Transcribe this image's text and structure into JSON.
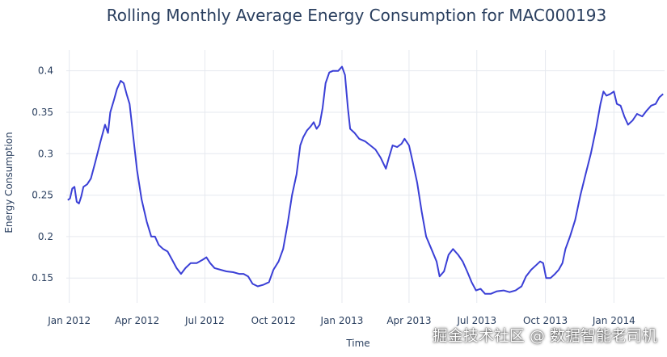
{
  "chart_data": {
    "type": "line",
    "title": "Rolling Monthly Average Energy Consumption for MAC000193",
    "xlabel": "Time",
    "ylabel": "Energy Consumption",
    "xlim": [
      "2011-12-28",
      "2014-03-10"
    ],
    "ylim": [
      0.12,
      0.425
    ],
    "grid": true,
    "x_ticks": [
      {
        "date": "2012-01-01",
        "label": "Jan 2012"
      },
      {
        "date": "2012-04-01",
        "label": "Apr 2012"
      },
      {
        "date": "2012-07-01",
        "label": "Jul 2012"
      },
      {
        "date": "2012-10-01",
        "label": "Oct 2012"
      },
      {
        "date": "2013-01-01",
        "label": "Jan 2013"
      },
      {
        "date": "2013-04-01",
        "label": "Apr 2013"
      },
      {
        "date": "2013-07-01",
        "label": "Jul 2013"
      },
      {
        "date": "2013-10-01",
        "label": "Oct 2013"
      },
      {
        "date": "2014-01-01",
        "label": "Jan 2014"
      }
    ],
    "y_ticks": [
      {
        "value": 0.15,
        "label": "0.15"
      },
      {
        "value": 0.2,
        "label": "0.2"
      },
      {
        "value": 0.25,
        "label": "0.25"
      },
      {
        "value": 0.3,
        "label": "0.3"
      },
      {
        "value": 0.35,
        "label": "0.35"
      },
      {
        "value": 0.4,
        "label": "0.4"
      }
    ],
    "series": [
      {
        "color": "#3a3fd6",
        "points": [
          [
            "2011-12-30",
            0.244
          ],
          [
            "2012-01-02",
            0.246
          ],
          [
            "2012-01-05",
            0.258
          ],
          [
            "2012-01-08",
            0.26
          ],
          [
            "2012-01-11",
            0.242
          ],
          [
            "2012-01-14",
            0.24
          ],
          [
            "2012-01-17",
            0.248
          ],
          [
            "2012-01-20",
            0.26
          ],
          [
            "2012-01-25",
            0.263
          ],
          [
            "2012-01-30",
            0.27
          ],
          [
            "2012-02-05",
            0.29
          ],
          [
            "2012-02-12",
            0.315
          ],
          [
            "2012-02-18",
            0.335
          ],
          [
            "2012-02-22",
            0.325
          ],
          [
            "2012-02-25",
            0.35
          ],
          [
            "2012-03-01",
            0.365
          ],
          [
            "2012-03-05",
            0.378
          ],
          [
            "2012-03-10",
            0.388
          ],
          [
            "2012-03-14",
            0.385
          ],
          [
            "2012-03-18",
            0.372
          ],
          [
            "2012-03-22",
            0.36
          ],
          [
            "2012-03-27",
            0.32
          ],
          [
            "2012-04-01",
            0.28
          ],
          [
            "2012-04-07",
            0.245
          ],
          [
            "2012-04-14",
            0.218
          ],
          [
            "2012-04-20",
            0.2
          ],
          [
            "2012-04-25",
            0.2
          ],
          [
            "2012-04-30",
            0.19
          ],
          [
            "2012-05-06",
            0.185
          ],
          [
            "2012-05-12",
            0.182
          ],
          [
            "2012-05-18",
            0.172
          ],
          [
            "2012-05-24",
            0.162
          ],
          [
            "2012-05-30",
            0.155
          ],
          [
            "2012-06-05",
            0.162
          ],
          [
            "2012-06-12",
            0.168
          ],
          [
            "2012-06-20",
            0.168
          ],
          [
            "2012-06-28",
            0.172
          ],
          [
            "2012-07-03",
            0.175
          ],
          [
            "2012-07-08",
            0.168
          ],
          [
            "2012-07-14",
            0.162
          ],
          [
            "2012-07-22",
            0.16
          ],
          [
            "2012-07-30",
            0.158
          ],
          [
            "2012-08-08",
            0.157
          ],
          [
            "2012-08-16",
            0.155
          ],
          [
            "2012-08-22",
            0.155
          ],
          [
            "2012-08-28",
            0.152
          ],
          [
            "2012-09-03",
            0.143
          ],
          [
            "2012-09-10",
            0.14
          ],
          [
            "2012-09-18",
            0.142
          ],
          [
            "2012-09-25",
            0.145
          ],
          [
            "2012-10-01",
            0.16
          ],
          [
            "2012-10-08",
            0.17
          ],
          [
            "2012-10-14",
            0.185
          ],
          [
            "2012-10-20",
            0.215
          ],
          [
            "2012-10-26",
            0.25
          ],
          [
            "2012-11-01",
            0.275
          ],
          [
            "2012-11-06",
            0.31
          ],
          [
            "2012-11-10",
            0.32
          ],
          [
            "2012-11-15",
            0.328
          ],
          [
            "2012-11-20",
            0.333
          ],
          [
            "2012-11-24",
            0.338
          ],
          [
            "2012-11-28",
            0.33
          ],
          [
            "2012-12-02",
            0.335
          ],
          [
            "2012-12-06",
            0.355
          ],
          [
            "2012-12-10",
            0.385
          ],
          [
            "2012-12-15",
            0.398
          ],
          [
            "2012-12-20",
            0.4
          ],
          [
            "2012-12-27",
            0.4
          ],
          [
            "2013-01-01",
            0.405
          ],
          [
            "2013-01-05",
            0.395
          ],
          [
            "2013-01-09",
            0.355
          ],
          [
            "2013-01-12",
            0.33
          ],
          [
            "2013-01-18",
            0.325
          ],
          [
            "2013-01-24",
            0.318
          ],
          [
            "2013-02-01",
            0.315
          ],
          [
            "2013-02-08",
            0.31
          ],
          [
            "2013-02-15",
            0.305
          ],
          [
            "2013-02-22",
            0.295
          ],
          [
            "2013-03-01",
            0.282
          ],
          [
            "2013-03-05",
            0.295
          ],
          [
            "2013-03-10",
            0.31
          ],
          [
            "2013-03-16",
            0.308
          ],
          [
            "2013-03-22",
            0.312
          ],
          [
            "2013-03-26",
            0.318
          ],
          [
            "2013-04-01",
            0.31
          ],
          [
            "2013-04-06",
            0.29
          ],
          [
            "2013-04-12",
            0.265
          ],
          [
            "2013-04-18",
            0.23
          ],
          [
            "2013-04-24",
            0.2
          ],
          [
            "2013-05-01",
            0.185
          ],
          [
            "2013-05-08",
            0.17
          ],
          [
            "2013-05-12",
            0.152
          ],
          [
            "2013-05-18",
            0.158
          ],
          [
            "2013-05-24",
            0.178
          ],
          [
            "2013-05-30",
            0.185
          ],
          [
            "2013-06-06",
            0.178
          ],
          [
            "2013-06-12",
            0.17
          ],
          [
            "2013-06-18",
            0.158
          ],
          [
            "2013-06-24",
            0.145
          ],
          [
            "2013-06-30",
            0.135
          ],
          [
            "2013-07-06",
            0.137
          ],
          [
            "2013-07-12",
            0.131
          ],
          [
            "2013-07-20",
            0.131
          ],
          [
            "2013-07-28",
            0.134
          ],
          [
            "2013-08-06",
            0.135
          ],
          [
            "2013-08-14",
            0.133
          ],
          [
            "2013-08-22",
            0.135
          ],
          [
            "2013-08-30",
            0.14
          ],
          [
            "2013-09-05",
            0.152
          ],
          [
            "2013-09-12",
            0.16
          ],
          [
            "2013-09-18",
            0.165
          ],
          [
            "2013-09-24",
            0.17
          ],
          [
            "2013-09-28",
            0.168
          ],
          [
            "2013-10-02",
            0.15
          ],
          [
            "2013-10-08",
            0.15
          ],
          [
            "2013-10-14",
            0.155
          ],
          [
            "2013-10-19",
            0.16
          ],
          [
            "2013-10-24",
            0.168
          ],
          [
            "2013-10-28",
            0.185
          ],
          [
            "2013-11-03",
            0.2
          ],
          [
            "2013-11-10",
            0.22
          ],
          [
            "2013-11-17",
            0.25
          ],
          [
            "2013-11-24",
            0.275
          ],
          [
            "2013-12-01",
            0.3
          ],
          [
            "2013-12-08",
            0.33
          ],
          [
            "2013-12-14",
            0.36
          ],
          [
            "2013-12-18",
            0.375
          ],
          [
            "2013-12-22",
            0.37
          ],
          [
            "2013-12-27",
            0.372
          ],
          [
            "2014-01-01",
            0.375
          ],
          [
            "2014-01-05",
            0.36
          ],
          [
            "2014-01-10",
            0.358
          ],
          [
            "2014-01-15",
            0.345
          ],
          [
            "2014-01-20",
            0.335
          ],
          [
            "2014-01-26",
            0.34
          ],
          [
            "2014-02-01",
            0.348
          ],
          [
            "2014-02-08",
            0.345
          ],
          [
            "2014-02-14",
            0.352
          ],
          [
            "2014-02-20",
            0.358
          ],
          [
            "2014-02-26",
            0.36
          ],
          [
            "2014-03-03",
            0.368
          ],
          [
            "2014-03-08",
            0.372
          ]
        ]
      }
    ]
  },
  "watermark": "掘金技术社区 @ 数据智能老司机"
}
